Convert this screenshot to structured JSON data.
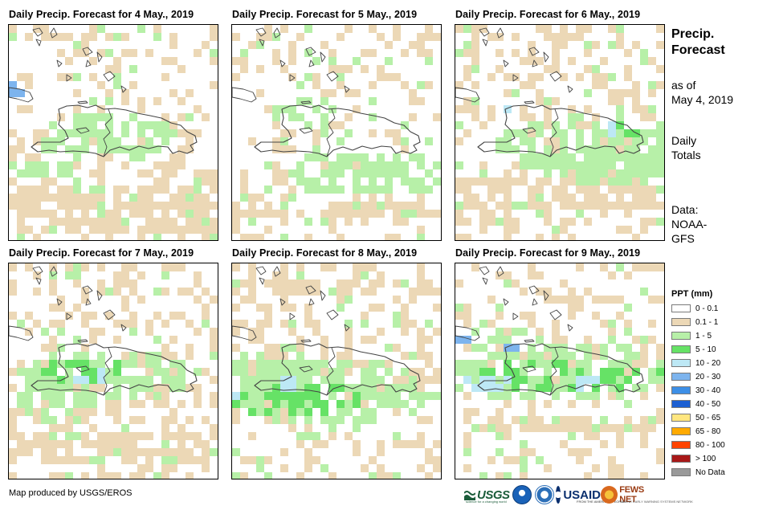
{
  "panels": [
    {
      "title": "Daily Precip. Forecast for 4 May., 2019"
    },
    {
      "title": "Daily Precip. Forecast for 5 May., 2019"
    },
    {
      "title": "Daily Precip. Forecast for 6 May., 2019"
    },
    {
      "title": "Daily Precip. Forecast for 7 May., 2019"
    },
    {
      "title": "Daily Precip. Forecast for 8 May., 2019"
    },
    {
      "title": "Daily Precip. Forecast for 9 May., 2019"
    }
  ],
  "side": {
    "title_line1": "Precip.",
    "title_line2": "Forecast",
    "asof_line1": "as of",
    "asof_line2": "May 4, 2019",
    "totals_line1": "Daily",
    "totals_line2": "Totals",
    "data_line1": "Data:",
    "data_line2": "NOAA-",
    "data_line3": "GFS"
  },
  "legend": {
    "title": "PPT (mm)",
    "items": [
      {
        "label": "0 - 0.1",
        "color": "#ffffff"
      },
      {
        "label": "0.1 - 1",
        "color": "#ecd8b6"
      },
      {
        "label": "1 - 5",
        "color": "#b7f0a8"
      },
      {
        "label": "5 - 10",
        "color": "#66e266"
      },
      {
        "label": "10 - 20",
        "color": "#bde8f5"
      },
      {
        "label": "20 - 30",
        "color": "#7db4ee"
      },
      {
        "label": "30 - 40",
        "color": "#3d8fe6"
      },
      {
        "label": "40 - 50",
        "color": "#1c5fd2"
      },
      {
        "label": "50 - 65",
        "color": "#ffe680"
      },
      {
        "label": "65 - 80",
        "color": "#ffaa00"
      },
      {
        "label": "80 - 100",
        "color": "#ff4400"
      },
      {
        "label": "> 100",
        "color": "#a81818"
      },
      {
        "label": "No Data",
        "color": "#9a9a9a"
      }
    ]
  },
  "credit": "Map produced by USGS/EROS",
  "logos": {
    "usgs": "USGS",
    "usgs_tagline": "science for a changing world",
    "usaid": "USAID",
    "usaid_tagline": "FROM THE AMERICAN PEOPLE",
    "fews": "FEWS NET",
    "fews_tagline": "FAMINE EARLY WARNING SYSTEMS NETWORK"
  }
}
